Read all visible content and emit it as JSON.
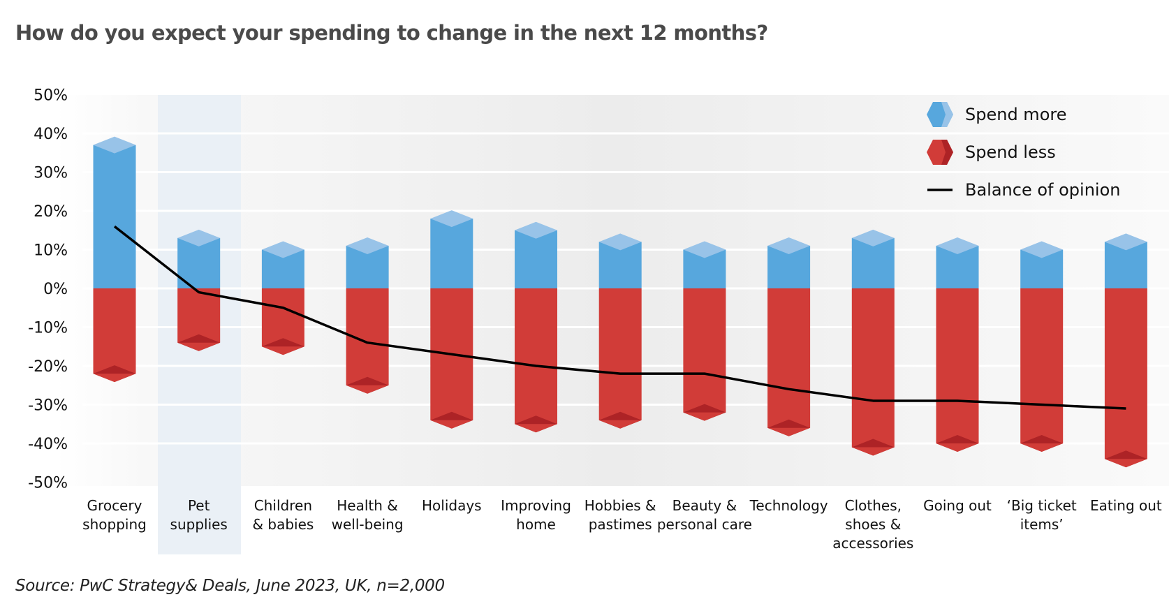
{
  "title": "How do you expect your spending to change in the next 12 months?",
  "source": "Source: PwC Strategy& Deals, June 2023, UK, n=2,000",
  "colors": {
    "spend_more": "#57a7dd",
    "spend_more_top": "#98c3e8",
    "spend_less": "#d13c38",
    "spend_less_bottom": "#ad2326",
    "balance_line": "#000000",
    "highlight_band": "#eaf0f6",
    "title": "#4a4a4a"
  },
  "chart_data": {
    "type": "bar",
    "title": "How do you expect your spending to change in the next 12 months?",
    "xlabel": "",
    "ylabel": "",
    "ylim": [
      -50,
      50
    ],
    "yticks": [
      50,
      40,
      30,
      20,
      10,
      0,
      -10,
      -20,
      -30,
      -40,
      -50
    ],
    "ytick_labels": [
      "50%",
      "40%",
      "30%",
      "20%",
      "10%",
      "0%",
      "-10%",
      "-20%",
      "-30%",
      "-40%",
      "-50%"
    ],
    "grid": true,
    "legend_position": "top-right",
    "highlighted_category": "Pet supplies",
    "categories": [
      [
        "Grocery",
        "shopping"
      ],
      [
        "Pet",
        "supplies"
      ],
      [
        "Children",
        "& babies"
      ],
      [
        "Health &",
        "well-being"
      ],
      [
        "Holidays"
      ],
      [
        "Improving",
        "home"
      ],
      [
        "Hobbies &",
        "pastimes"
      ],
      [
        "Beauty &",
        "personal care"
      ],
      [
        "Technology"
      ],
      [
        "Clothes,",
        "shoes &",
        "accessories"
      ],
      [
        "Going out"
      ],
      [
        "‘Big ticket",
        "items’"
      ],
      [
        "Eating out"
      ]
    ],
    "series": [
      {
        "name": "Spend more",
        "type": "bar",
        "values": [
          37,
          13,
          10,
          11,
          18,
          15,
          12,
          10,
          11,
          13,
          11,
          10,
          12
        ]
      },
      {
        "name": "Spend less",
        "type": "bar",
        "values": [
          -22,
          -14,
          -15,
          -25,
          -34,
          -35,
          -34,
          -32,
          -36,
          -41,
          -40,
          -40,
          -44
        ]
      },
      {
        "name": "Balance of opinion",
        "type": "line",
        "values": [
          16,
          -1,
          -5,
          -14,
          -17,
          -20,
          -22,
          -22,
          -26,
          -29,
          -29,
          -30,
          -31
        ]
      }
    ]
  }
}
